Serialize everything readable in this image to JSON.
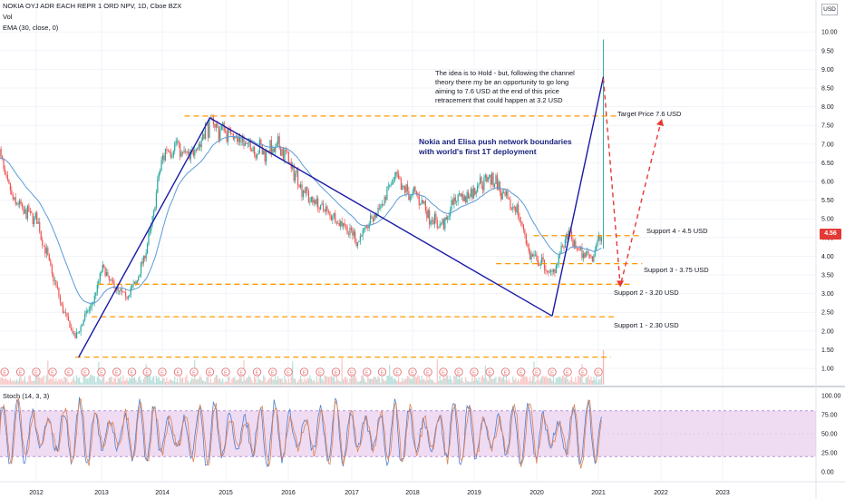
{
  "header": {
    "symbol_line": "NOKIA OYJ ADR EACH REPR 1 ORD NPV, 1D, Cboe BZX",
    "vol_label": "Vol",
    "ema_label": "EMA (30, close, 0)",
    "stoch_label": "Stoch (14, 3, 3)",
    "currency": "USD",
    "last_price": "4.56"
  },
  "annotations": {
    "idea_note": "The idea is to Hold - but, following the channel theory there my be an opportunity to go long aiming to 7.6 USD at the end of this price retracement that could happen at 3.2 USD",
    "news_note": "Nokia and Elisa push network boundaries with world's first 1T deployment",
    "target_label": "Target Price 7.6 USD",
    "support4_label": "Support 4 - 4.5 USD",
    "support3_label": "Support 3 - 3.75 USD",
    "support2_label": "Support 2 - 3.20 USD",
    "support1_label": "Support 1 - 2.30 USD"
  },
  "colors": {
    "candle_up": "#26a69a",
    "candle_down": "#ef5350",
    "ema": "#5b9bd5",
    "trend": "#1a1aa6",
    "level": "#ff9800",
    "projection": "#e53935",
    "stoch_k": "#4f7fd0",
    "stoch_d": "#e08050",
    "stoch_band": "#e1bee7",
    "earnings": "#e57373"
  },
  "chart_data": [
    {
      "type": "line",
      "title": "NOKIA OYJ ADR EACH REPR 1 ORD NPV, 1D, Cboe BZX",
      "x_ticks": [
        "2012",
        "2013",
        "2014",
        "2015",
        "2016",
        "2017",
        "2018",
        "2019",
        "2020",
        "2021",
        "2022",
        "2023"
      ],
      "y_ticks": [
        "1.00",
        "1.50",
        "2.00",
        "2.50",
        "3.00",
        "3.50",
        "4.00",
        "4.50",
        "5.00",
        "5.50",
        "6.00",
        "6.50",
        "7.00",
        "7.50",
        "8.00",
        "8.50",
        "9.00",
        "9.50",
        "10.00"
      ],
      "ylim": [
        0.7,
        10.5
      ],
      "scale": "linear",
      "series": [
        {
          "name": "",
          "x": [
            2011.4,
            2011.6,
            2011.8,
            2012.0,
            2012.2,
            2012.4,
            2012.6,
            2012.75,
            2012.9,
            2013.0,
            2013.2,
            2013.4,
            2013.6,
            2013.8,
            2014.0,
            2014.2,
            2014.4,
            2014.6,
            2014.75,
            2014.9,
            2015.1,
            2015.3,
            2015.6,
            2015.9,
            2016.1,
            2016.3,
            2016.6,
            2016.9,
            2017.1,
            2017.3,
            2017.5,
            2017.7,
            2017.9,
            2018.1,
            2018.3,
            2018.5,
            2018.7,
            2018.9,
            2019.1,
            2019.3,
            2019.5,
            2019.7,
            2019.9,
            2020.1,
            2020.2,
            2020.3,
            2020.5,
            2020.7,
            2020.9,
            2021.0,
            2021.05
          ],
          "values": [
            6.8,
            5.6,
            5.2,
            5.0,
            3.8,
            2.6,
            1.8,
            2.4,
            2.9,
            3.7,
            3.2,
            2.9,
            3.4,
            4.6,
            6.7,
            7.0,
            6.6,
            7.1,
            7.6,
            7.4,
            7.3,
            7.0,
            6.8,
            6.9,
            6.2,
            5.6,
            5.2,
            4.8,
            4.4,
            4.9,
            5.4,
            6.1,
            5.7,
            5.6,
            5.0,
            4.8,
            5.6,
            5.6,
            6.0,
            6.1,
            5.5,
            5.2,
            4.0,
            3.8,
            3.5,
            3.7,
            4.6,
            4.1,
            4.0,
            4.4,
            4.56
          ]
        }
      ]
    },
    {
      "type": "line",
      "title": "Stoch (14, 3, 3)",
      "y_ticks": [
        "0.00",
        "25.00",
        "50.00",
        "75.00",
        "100.00"
      ],
      "ylim": [
        -10,
        105
      ],
      "band": [
        20,
        80
      ]
    }
  ]
}
